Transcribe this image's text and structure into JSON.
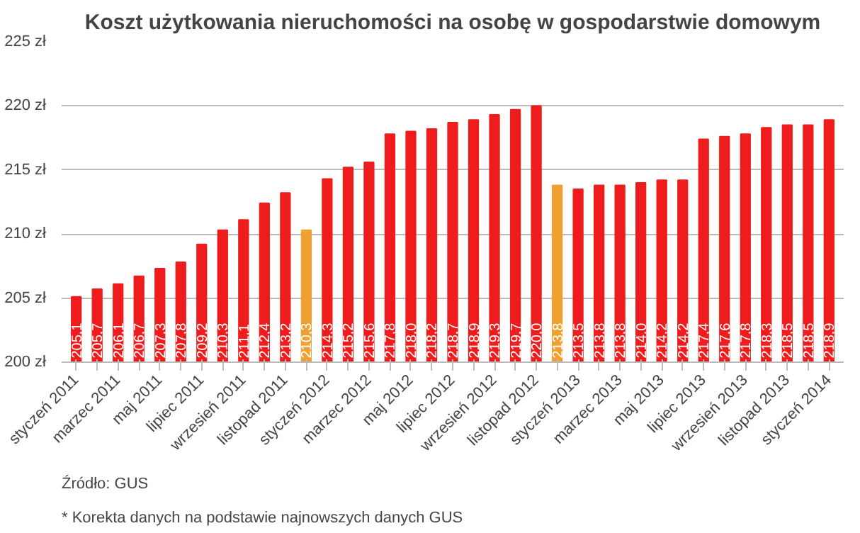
{
  "chart_data": {
    "type": "bar",
    "title": "Koszt użytkowania nieruchomości na osobę w gospodarstwie domowym",
    "categories": [
      "styczeń 2011",
      null,
      "marzec 2011",
      null,
      "maj 2011",
      null,
      "lipiec 2011",
      null,
      "wrzesień 2011",
      null,
      "listopad 2011",
      null,
      "styczeń 2012",
      null,
      "marzec 2012",
      null,
      "maj 2012",
      null,
      "lipiec 2012",
      null,
      "wrzesień 2012",
      null,
      "listopad 2012",
      null,
      "styczeń 2013",
      null,
      "marzec 2013",
      null,
      "maj 2013",
      null,
      "lipiec 2013",
      null,
      "wrzesień 2013",
      null,
      "listopad 2013",
      null,
      "styczeń 2014"
    ],
    "values": [
      205.1,
      205.7,
      206.1,
      206.7,
      207.3,
      207.8,
      209.2,
      210.3,
      211.1,
      212.4,
      213.2,
      210.3,
      214.3,
      215.2,
      215.6,
      217.8,
      218.0,
      218.2,
      218.7,
      218.9,
      219.3,
      219.7,
      220.0,
      213.8,
      213.5,
      213.8,
      213.8,
      214.0,
      214.2,
      214.2,
      217.4,
      217.6,
      217.8,
      218.3,
      218.5,
      218.5,
      218.9
    ],
    "value_labels": [
      "205,1",
      "205,7",
      "206,1",
      "206,7",
      "207,3",
      "207,8",
      "209,2",
      "210,3",
      "211,1",
      "212,4",
      "213,2",
      "210,3",
      "214,3",
      "215,2",
      "215,6",
      "217,8",
      "218,0",
      "218,2",
      "218,7",
      "218,9",
      "219,3",
      "219,7",
      "220,0",
      "213,8",
      "213,5",
      "213,8",
      "213,8",
      "214,0",
      "214,2",
      "214,2",
      "217,4",
      "217,6",
      "217,8",
      "218,3",
      "218,5",
      "218,5",
      "218,9"
    ],
    "colors": [
      "#ee1c1c",
      "#ee1c1c",
      "#ee1c1c",
      "#ee1c1c",
      "#ee1c1c",
      "#ee1c1c",
      "#ee1c1c",
      "#ee1c1c",
      "#ee1c1c",
      "#ee1c1c",
      "#ee1c1c",
      "#f0a030",
      "#ee1c1c",
      "#ee1c1c",
      "#ee1c1c",
      "#ee1c1c",
      "#ee1c1c",
      "#ee1c1c",
      "#ee1c1c",
      "#ee1c1c",
      "#ee1c1c",
      "#ee1c1c",
      "#ee1c1c",
      "#f0a030",
      "#ee1c1c",
      "#ee1c1c",
      "#ee1c1c",
      "#ee1c1c",
      "#ee1c1c",
      "#ee1c1c",
      "#ee1c1c",
      "#ee1c1c",
      "#ee1c1c",
      "#ee1c1c",
      "#ee1c1c",
      "#ee1c1c",
      "#ee1c1c"
    ],
    "ylim": [
      200,
      225
    ],
    "yticks": [
      {
        "value": 200,
        "label": "200 zł"
      },
      {
        "value": 205,
        "label": "205 zł"
      },
      {
        "value": 210,
        "label": "210 zł"
      },
      {
        "value": 215,
        "label": "215 zł"
      },
      {
        "value": 220,
        "label": "220 zł"
      },
      {
        "value": 225,
        "label": "225 zł"
      }
    ],
    "grid": "y",
    "annotations": [
      "Źródło: GUS",
      "* Korekta danych na podstawie najnowszych danych GUS"
    ]
  }
}
